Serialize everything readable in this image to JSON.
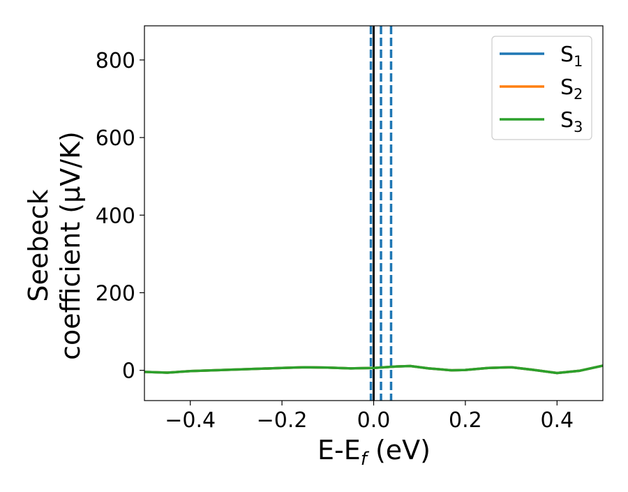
{
  "chart_data": {
    "type": "line",
    "xlabel": "E-E",
    "xlabel_sub": "f",
    "xlabel_unit": "(eV)",
    "ylabel_line1": "Seebeck",
    "ylabel_line2": "coefficient  (μV/K)",
    "xlim": [
      -0.5,
      0.5
    ],
    "ylim": [
      -78,
      888
    ],
    "x_ticks": [
      -0.4,
      -0.2,
      0.0,
      0.2,
      0.4
    ],
    "x_tick_labels": [
      "−0.4",
      "−0.2",
      "0.0",
      "0.2",
      "0.4"
    ],
    "y_ticks": [
      0,
      200,
      400,
      600,
      800
    ],
    "y_tick_labels": [
      "0",
      "200",
      "400",
      "600",
      "800"
    ],
    "grid": false,
    "legend_position": "top-right",
    "series": [
      {
        "name": "S",
        "name_sub": "1",
        "color": "#1f77b4",
        "x": [
          -0.5,
          -0.45,
          -0.4,
          -0.35,
          -0.3,
          -0.25,
          -0.2,
          -0.15,
          -0.1,
          -0.05,
          0.0,
          0.05,
          0.08,
          0.12,
          0.17,
          0.2,
          0.25,
          0.3,
          0.35,
          0.4,
          0.45,
          0.5
        ],
        "y": [
          -4,
          -6,
          -2,
          0,
          2,
          4,
          6,
          8,
          7,
          5,
          6,
          10,
          11,
          5,
          0,
          1,
          6,
          8,
          1,
          -7,
          -1,
          12
        ]
      },
      {
        "name": "S",
        "name_sub": "2",
        "color": "#ff7f0e",
        "x": [
          -0.5,
          -0.45,
          -0.4,
          -0.35,
          -0.3,
          -0.25,
          -0.2,
          -0.15,
          -0.1,
          -0.05,
          0.0,
          0.05,
          0.08,
          0.12,
          0.17,
          0.2,
          0.25,
          0.3,
          0.35,
          0.4,
          0.45,
          0.5
        ],
        "y": [
          -4,
          -6,
          -2,
          0,
          2,
          4,
          6,
          8,
          7,
          5,
          6,
          10,
          11,
          5,
          0,
          1,
          6,
          8,
          1,
          -7,
          -1,
          12
        ]
      },
      {
        "name": "S",
        "name_sub": "3",
        "color": "#2ca02c",
        "x": [
          -0.5,
          -0.45,
          -0.4,
          -0.35,
          -0.3,
          -0.25,
          -0.2,
          -0.15,
          -0.1,
          -0.05,
          0.0,
          0.05,
          0.08,
          0.12,
          0.17,
          0.2,
          0.25,
          0.3,
          0.35,
          0.4,
          0.45,
          0.5
        ],
        "y": [
          -4,
          -6,
          -2,
          0,
          2,
          4,
          6,
          8,
          7,
          5,
          6,
          10,
          11,
          5,
          0,
          1,
          6,
          8,
          1,
          -7,
          -1,
          12
        ]
      }
    ],
    "vertical_lines": [
      {
        "x": 0.0,
        "style": "solid",
        "color": "#000000"
      },
      {
        "x": -0.006,
        "style": "dashed",
        "color": "#1f77b4"
      },
      {
        "x": 0.016,
        "style": "dashed",
        "color": "#1f77b4"
      },
      {
        "x": 0.038,
        "style": "dashed",
        "color": "#1f77b4"
      }
    ]
  }
}
